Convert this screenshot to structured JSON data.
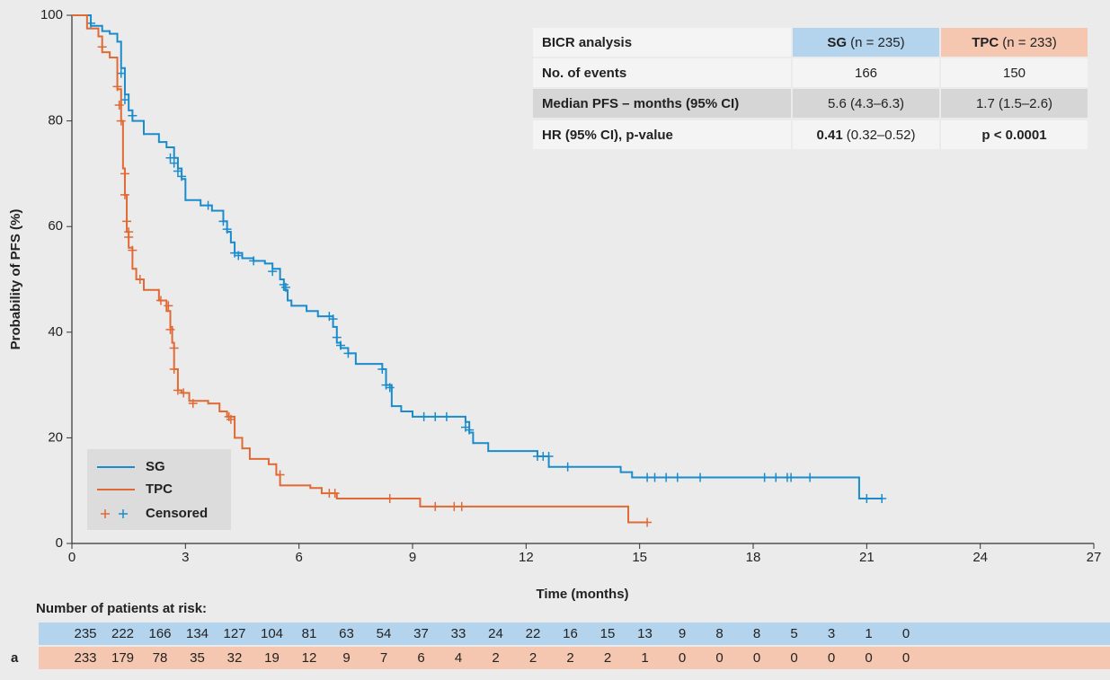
{
  "chart_data": {
    "type": "km",
    "ylabel": "Probability of PFS (%)",
    "xlabel": "Time (months)",
    "xlim": [
      0,
      27
    ],
    "xticks": [
      0,
      3,
      6,
      9,
      12,
      15,
      18,
      21,
      24,
      27
    ],
    "ylim": [
      0,
      100
    ],
    "yticks": [
      0,
      20,
      40,
      60,
      80,
      100
    ],
    "series": [
      {
        "name": "SG",
        "color": "#1a8ccc",
        "x": [
          0,
          0.5,
          0.8,
          1.0,
          1.2,
          1.3,
          1.4,
          1.5,
          1.6,
          1.9,
          2.3,
          2.5,
          2.7,
          2.8,
          2.9,
          3.0,
          3.4,
          3.7,
          4.0,
          4.1,
          4.2,
          4.3,
          4.5,
          4.8,
          5.1,
          5.3,
          5.5,
          5.6,
          5.7,
          5.8,
          6.2,
          6.5,
          6.9,
          7.0,
          7.1,
          7.3,
          7.5,
          8.2,
          8.3,
          8.45,
          8.7,
          9.0,
          10.4,
          10.5,
          10.6,
          11.0,
          12.3,
          12.6,
          14.5,
          14.8,
          20.8,
          21.4
        ],
        "values": [
          100,
          98,
          97,
          96.5,
          95,
          90,
          85,
          82,
          80,
          77.5,
          76,
          75,
          73,
          71,
          69,
          65,
          64,
          63,
          61,
          59,
          57,
          55,
          54,
          53.5,
          53,
          52,
          50,
          48,
          46,
          45,
          44,
          43,
          41,
          38,
          37,
          36,
          34,
          33,
          30,
          26,
          25,
          24,
          23,
          21,
          19,
          17.5,
          16.5,
          14.5,
          13.5,
          12.5,
          8.5,
          8.5
        ],
        "censored": {
          "x": [
            0.5,
            1.3,
            1.4,
            1.6,
            2.6,
            2.7,
            2.8,
            2.9,
            3.6,
            4.0,
            4.1,
            4.3,
            4.4,
            4.8,
            5.3,
            5.6,
            5.65,
            6.8,
            6.9,
            7.0,
            7.1,
            7.3,
            8.2,
            8.3,
            8.4,
            9.3,
            9.6,
            9.9,
            10.4,
            10.5,
            12.3,
            12.45,
            12.6,
            13.1,
            15.2,
            15.4,
            15.7,
            16.0,
            16.6,
            18.3,
            18.6,
            18.9,
            19.0,
            19.5,
            21.0,
            21.4
          ],
          "values": [
            98.5,
            89,
            84,
            81,
            73,
            72,
            70.5,
            69.5,
            64,
            61,
            59.5,
            55,
            54.5,
            53.5,
            51.5,
            49,
            48.5,
            43,
            42.5,
            39,
            37.5,
            36,
            33,
            30,
            29.5,
            24,
            24,
            24,
            22,
            21.5,
            16.5,
            16.5,
            16.5,
            14.5,
            12.5,
            12.5,
            12.5,
            12.5,
            12.5,
            12.5,
            12.5,
            12.5,
            12.5,
            12.5,
            8.5,
            8.5
          ]
        }
      },
      {
        "name": "TPC",
        "color": "#e06a35",
        "x": [
          0,
          0.4,
          0.7,
          0.8,
          1.0,
          1.2,
          1.3,
          1.35,
          1.4,
          1.45,
          1.5,
          1.6,
          1.7,
          1.9,
          2.3,
          2.5,
          2.6,
          2.65,
          2.7,
          2.8,
          2.9,
          3.1,
          3.6,
          3.9,
          4.1,
          4.3,
          4.5,
          4.7,
          5.2,
          5.4,
          5.5,
          6.3,
          6.6,
          7.0,
          9.2,
          14.7,
          15.2
        ],
        "values": [
          100,
          97.5,
          96,
          93,
          92,
          86,
          80,
          71,
          66,
          59,
          56,
          52,
          50,
          48,
          46,
          44,
          41,
          38,
          33,
          29,
          28.5,
          27,
          26.5,
          25,
          24,
          20,
          18,
          16,
          15,
          13,
          11,
          10.5,
          9.5,
          8.5,
          7,
          4,
          4
        ],
        "censored": {
          "x": [
            0.8,
            1.2,
            1.25,
            1.3,
            1.4,
            1.4,
            1.45,
            1.5,
            1.5,
            1.6,
            1.8,
            2.35,
            2.55,
            2.6,
            2.7,
            2.7,
            2.8,
            2.95,
            3.2,
            4.15,
            4.2,
            5.5,
            6.8,
            6.95,
            8.4,
            9.6,
            10.1,
            10.3,
            15.2
          ],
          "values": [
            94,
            86.5,
            83,
            80,
            70,
            66,
            61,
            59,
            58,
            55.5,
            50,
            46,
            45,
            40.5,
            37,
            33,
            29,
            28.5,
            26.5,
            24,
            23.5,
            13,
            9.5,
            9.5,
            8.5,
            7,
            7,
            7,
            4
          ]
        }
      }
    ],
    "censored_label": "Censored",
    "table": {
      "header": [
        "BICR analysis",
        {
          "bold": "SG",
          "text": "(n = 235)"
        },
        {
          "bold": "TPC",
          "text": "(n = 233)"
        }
      ],
      "rows": [
        [
          "No. of events",
          166,
          150
        ],
        [
          "Median PFS – months (95% CI)",
          "5.6 (4.3–6.3)",
          "1.7 (1.5–2.6)"
        ],
        [
          "HR (95% CI), p-value",
          {
            "bold": "0.41",
            "text": "(0.32–0.52)"
          },
          {
            "bold": "p < 0.0001"
          }
        ]
      ]
    },
    "risk_table": {
      "title": "Number of patients at risk:",
      "panel_label": "a",
      "rows": [
        {
          "color": "#b4d4ee",
          "values": [
            235,
            222,
            166,
            134,
            127,
            104,
            81,
            63,
            54,
            37,
            33,
            24,
            22,
            16,
            15,
            13,
            9,
            8,
            8,
            5,
            3,
            1,
            0
          ]
        },
        {
          "color": "#f5c7b0",
          "values": [
            233,
            179,
            78,
            35,
            32,
            19,
            12,
            9,
            7,
            6,
            4,
            2,
            2,
            2,
            2,
            1,
            0,
            0,
            0,
            0,
            0,
            0,
            0
          ]
        }
      ]
    }
  }
}
